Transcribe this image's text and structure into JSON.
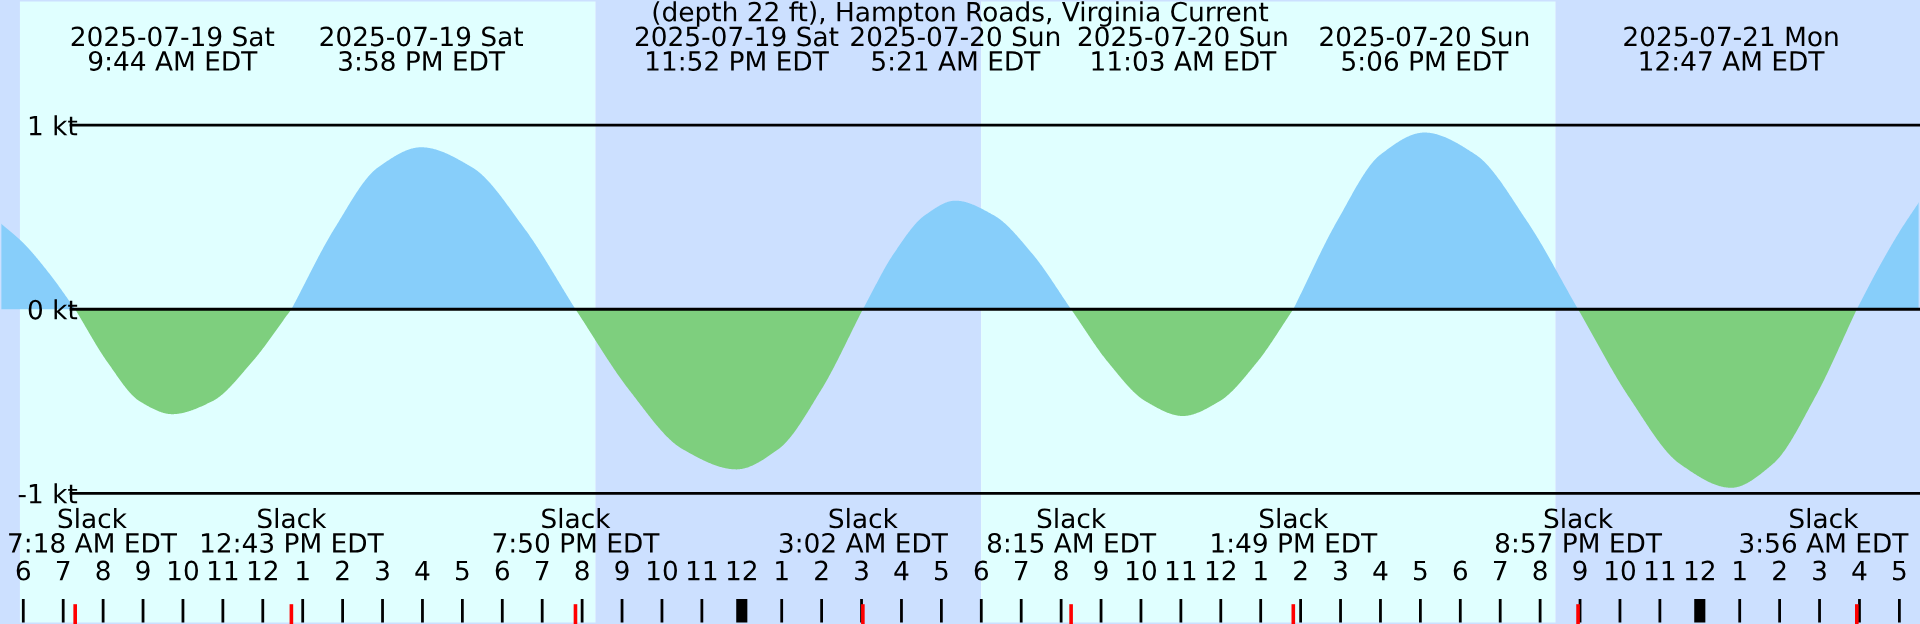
{
  "chart_data": {
    "type": "area",
    "title": "(depth 22 ft), Hampton Roads, Virginia Current",
    "x": [
      "2025-07-19T05:25",
      "2025-07-19T06:00",
      "2025-07-19T06:40",
      "2025-07-19T07:18",
      "2025-07-19T08:07",
      "2025-07-19T08:55",
      "2025-07-19T09:44",
      "2025-07-19T10:44",
      "2025-07-19T11:43",
      "2025-07-19T12:43",
      "2025-07-19T13:48",
      "2025-07-19T14:53",
      "2025-07-19T15:58",
      "2025-07-19T17:15",
      "2025-07-19T18:33",
      "2025-07-19T19:50",
      "2025-07-19T21:11",
      "2025-07-19T22:31",
      "2025-07-19T23:52",
      "2025-07-20T00:55",
      "2025-07-20T01:59",
      "2025-07-20T03:02",
      "2025-07-20T03:48",
      "2025-07-20T04:35",
      "2025-07-20T05:21",
      "2025-07-20T06:19",
      "2025-07-20T07:17",
      "2025-07-20T08:15",
      "2025-07-20T09:11",
      "2025-07-20T10:07",
      "2025-07-20T11:03",
      "2025-07-20T11:58",
      "2025-07-20T12:54",
      "2025-07-20T13:49",
      "2025-07-20T14:55",
      "2025-07-20T16:00",
      "2025-07-20T17:06",
      "2025-07-20T18:23",
      "2025-07-20T19:40",
      "2025-07-20T20:57",
      "2025-07-20T22:14",
      "2025-07-20T23:30",
      "2025-07-21T00:47",
      "2025-07-21T01:50",
      "2025-07-21T02:53",
      "2025-07-21T03:56",
      "2025-07-21T04:28",
      "2025-07-21T05:00",
      "2025-07-21T05:31"
    ],
    "series": [
      {
        "color": "#87cefa",
        "values": [
          0.47,
          0.36,
          0.19,
          0,
          null,
          null,
          null,
          null,
          null,
          0,
          0.44,
          0.77,
          0.88,
          0.77,
          0.44,
          0,
          null,
          null,
          null,
          null,
          null,
          0,
          0.3,
          0.51,
          0.59,
          0.51,
          0.3,
          0,
          null,
          null,
          null,
          null,
          null,
          0,
          0.48,
          0.84,
          0.96,
          0.84,
          0.48,
          0,
          null,
          null,
          null,
          null,
          null,
          0,
          0.22,
          0.42,
          0.59
        ]
      },
      {
        "color": "#7ecf7e",
        "values": [
          null,
          null,
          null,
          0,
          -0.29,
          -0.5,
          -0.57,
          -0.5,
          -0.29,
          0,
          null,
          null,
          null,
          null,
          null,
          0,
          -0.44,
          -0.76,
          -0.87,
          -0.76,
          -0.44,
          0,
          null,
          null,
          null,
          null,
          null,
          0,
          -0.29,
          -0.5,
          -0.58,
          -0.5,
          -0.29,
          0,
          null,
          null,
          null,
          null,
          null,
          0,
          -0.48,
          -0.84,
          -0.97,
          -0.84,
          -0.48,
          0,
          null,
          null,
          null
        ]
      }
    ],
    "ylim": [
      -1.71,
      1.68
    ],
    "yticks": [
      {
        "value": 1,
        "label": "1 kt"
      },
      {
        "value": 0,
        "label": "0 kt"
      },
      {
        "value": -1,
        "label": "-1 kt"
      }
    ],
    "grid": "y",
    "xlim": [
      "2025-07-19T05:25",
      "2025-07-21T05:31"
    ],
    "xticks": [
      {
        "value": "2025-07-19T06:00",
        "label": "6"
      },
      {
        "value": "2025-07-19T07:00",
        "label": "7"
      },
      {
        "value": "2025-07-19T08:00",
        "label": "8"
      },
      {
        "value": "2025-07-19T09:00",
        "label": "9"
      },
      {
        "value": "2025-07-19T10:00",
        "label": "10"
      },
      {
        "value": "2025-07-19T11:00",
        "label": "11"
      },
      {
        "value": "2025-07-19T12:00",
        "label": "12"
      },
      {
        "value": "2025-07-19T13:00",
        "label": "1"
      },
      {
        "value": "2025-07-19T14:00",
        "label": "2"
      },
      {
        "value": "2025-07-19T15:00",
        "label": "3"
      },
      {
        "value": "2025-07-19T16:00",
        "label": "4"
      },
      {
        "value": "2025-07-19T17:00",
        "label": "5"
      },
      {
        "value": "2025-07-19T18:00",
        "label": "6"
      },
      {
        "value": "2025-07-19T19:00",
        "label": "7"
      },
      {
        "value": "2025-07-19T20:00",
        "label": "8"
      },
      {
        "value": "2025-07-19T21:00",
        "label": "9"
      },
      {
        "value": "2025-07-19T22:00",
        "label": "10"
      },
      {
        "value": "2025-07-19T23:00",
        "label": "11"
      },
      {
        "value": "2025-07-20T00:00",
        "label": "12"
      },
      {
        "value": "2025-07-20T01:00",
        "label": "1"
      },
      {
        "value": "2025-07-20T02:00",
        "label": "2"
      },
      {
        "value": "2025-07-20T03:00",
        "label": "3"
      },
      {
        "value": "2025-07-20T04:00",
        "label": "4"
      },
      {
        "value": "2025-07-20T05:00",
        "label": "5"
      },
      {
        "value": "2025-07-20T06:00",
        "label": "6"
      },
      {
        "value": "2025-07-20T07:00",
        "label": "7"
      },
      {
        "value": "2025-07-20T08:00",
        "label": "8"
      },
      {
        "value": "2025-07-20T09:00",
        "label": "9"
      },
      {
        "value": "2025-07-20T10:00",
        "label": "10"
      },
      {
        "value": "2025-07-20T11:00",
        "label": "11"
      },
      {
        "value": "2025-07-20T12:00",
        "label": "12"
      },
      {
        "value": "2025-07-20T13:00",
        "label": "1"
      },
      {
        "value": "2025-07-20T14:00",
        "label": "2"
      },
      {
        "value": "2025-07-20T15:00",
        "label": "3"
      },
      {
        "value": "2025-07-20T16:00",
        "label": "4"
      },
      {
        "value": "2025-07-20T17:00",
        "label": "5"
      },
      {
        "value": "2025-07-20T18:00",
        "label": "6"
      },
      {
        "value": "2025-07-20T19:00",
        "label": "7"
      },
      {
        "value": "2025-07-20T20:00",
        "label": "8"
      },
      {
        "value": "2025-07-20T21:00",
        "label": "9"
      },
      {
        "value": "2025-07-20T22:00",
        "label": "10"
      },
      {
        "value": "2025-07-20T23:00",
        "label": "11"
      },
      {
        "value": "2025-07-21T00:00",
        "label": "12"
      },
      {
        "value": "2025-07-21T01:00",
        "label": "1"
      },
      {
        "value": "2025-07-21T02:00",
        "label": "2"
      },
      {
        "value": "2025-07-21T03:00",
        "label": "3"
      },
      {
        "value": "2025-07-21T04:00",
        "label": "4"
      },
      {
        "value": "2025-07-21T05:00",
        "label": "5"
      }
    ],
    "bands": [
      {
        "axis": "x",
        "from": "2025-07-19T05:25",
        "to": "2025-07-19T05:55",
        "color": "#cce0ff"
      },
      {
        "axis": "x",
        "from": "2025-07-19T05:55",
        "to": "2025-07-19T20:20",
        "color": "#e0ffff"
      },
      {
        "axis": "x",
        "from": "2025-07-19T20:20",
        "to": "2025-07-20T06:00",
        "color": "#cce0ff"
      },
      {
        "axis": "x",
        "from": "2025-07-20T06:00",
        "to": "2025-07-20T20:23",
        "color": "#e0ffff"
      },
      {
        "axis": "x",
        "from": "2025-07-20T20:23",
        "to": "2025-07-21T05:31",
        "color": "#cce0ff"
      }
    ],
    "annotations": [
      "2025-07-19 Sat\n9:44 AM EDT",
      "2025-07-19 Sat\n3:58 PM EDT",
      "2025-07-19 Sat\n11:52 PM EDT",
      "2025-07-20 Sun\n5:21 AM EDT",
      "2025-07-20 Sun\n11:03 AM EDT",
      "2025-07-20 Sun\n5:06 PM EDT",
      "2025-07-21 Mon\n12:47 AM EDT",
      "Slack\n7:18 AM EDT",
      "Slack\n12:43 PM EDT",
      "Slack\n7:50 PM EDT",
      "Slack\n3:02 AM EDT",
      "Slack\n8:15 AM EDT",
      "Slack\n1:49 PM EDT",
      "Slack\n8:57 PM EDT",
      "Slack\n3:56 AM EDT"
    ]
  }
}
